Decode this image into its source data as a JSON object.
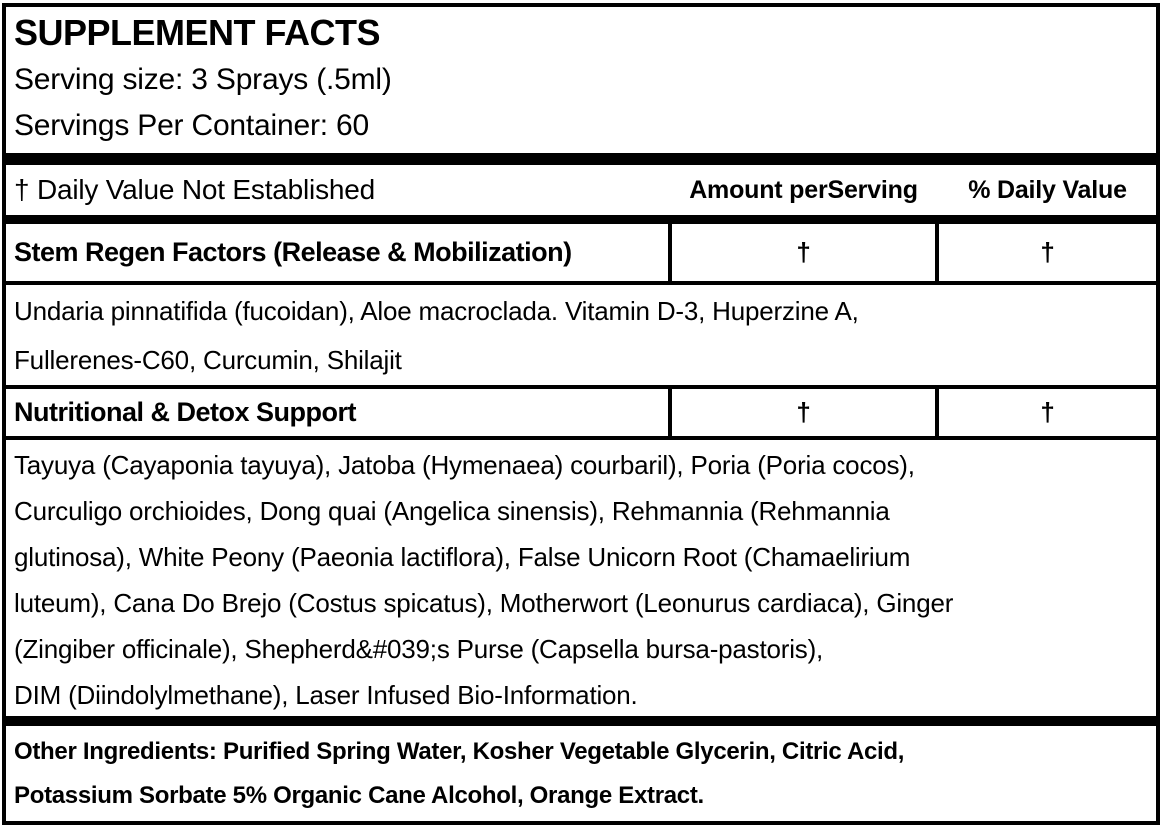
{
  "panel": {
    "title": "SUPPLEMENT FACTS",
    "serving_size": "Serving size: 3 Sprays (.5ml)",
    "servings_per_container": "Servings Per Container: 60"
  },
  "table": {
    "footnote": "† Daily Value Not Established",
    "amount_header": "Amount perServing",
    "dv_header": "% Daily Value",
    "rows": [
      {
        "name": "Stem Regen Factors (Release & Mobilization)",
        "amount": "†",
        "dv": "†",
        "details": "Undaria pinnatifida (fucoidan), Aloe macroclada. Vitamin D-3, Huperzine A,\nFullerenes-C60, Curcumin, Shilajit"
      },
      {
        "name": "Nutritional & Detox Support",
        "amount": "†",
        "dv": "†",
        "details": "Tayuya (Cayaponia tayuya), Jatoba (Hymenaea) courbaril), Poria (Poria cocos),\nCurculigo orchioides, Dong quai (Angelica sinensis), Rehmannia (Rehmannia\nglutinosa), White Peony (Paeonia lactiflora), False Unicorn Root (Chamaelirium\nluteum), Cana Do Brejo (Costus spicatus), Motherwort (Leonurus cardiaca), Ginger\n(Zingiber officinale), Shepherd&#039;s Purse (Capsella bursa-pastoris),\nDIM (Diindolylmethane), Laser Infused Bio-Information."
      }
    ]
  },
  "other_ingredients": "Other Ingredients: Purified Spring Water, Kosher Vegetable Glycerin, Citric Acid,\nPotassium Sorbate 5% Organic Cane Alcohol, Orange Extract."
}
